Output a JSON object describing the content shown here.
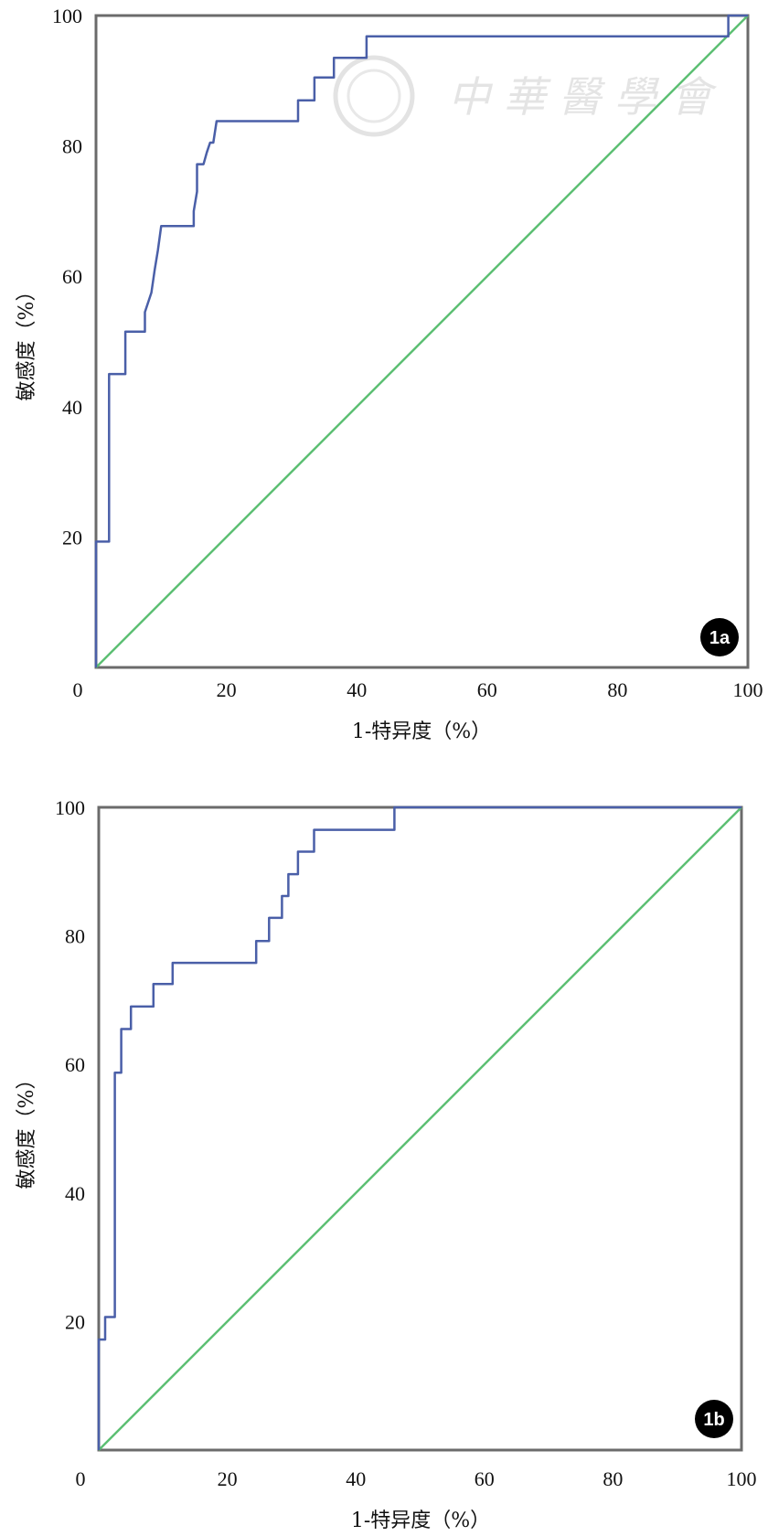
{
  "chart_data": [
    {
      "type": "line",
      "panel_label": "1a",
      "xlabel": "1-特异度（%）",
      "ylabel": "敏感度（%）",
      "xlim": [
        0,
        100
      ],
      "ylim": [
        0,
        100
      ],
      "x_ticks": [
        "0",
        "20",
        "40",
        "60",
        "80",
        "100"
      ],
      "y_ticks": [
        "20",
        "40",
        "60",
        "80",
        "100"
      ],
      "grid": false,
      "colors": {
        "roc": "#4a5fa8",
        "reference": "#5cbf73"
      },
      "series": [
        {
          "kind": "roc",
          "x": [
            0,
            0,
            2,
            2,
            4.5,
            4.5,
            7.5,
            7.5,
            8.5,
            9,
            9.5,
            10,
            15,
            15,
            15.5,
            15.5,
            16.5,
            17,
            17.5,
            18,
            18.5,
            18.5,
            31,
            31,
            33.5,
            33.5,
            36.5,
            36.5,
            41.5,
            41.5,
            97,
            97,
            100
          ],
          "y": [
            0,
            19.3,
            19.3,
            45,
            45,
            51.5,
            51.5,
            54.5,
            57.5,
            61,
            64,
            67.7,
            67.7,
            70,
            73,
            77.2,
            77.2,
            79,
            80.5,
            80.5,
            83.8,
            83.8,
            83.8,
            87,
            87,
            90.5,
            90.5,
            93.5,
            93.5,
            96.8,
            96.8,
            100,
            100
          ]
        },
        {
          "kind": "reference",
          "x": [
            0,
            100
          ],
          "y": [
            0,
            100
          ]
        }
      ]
    },
    {
      "type": "line",
      "panel_label": "1b",
      "xlabel": "1-特异度（%）",
      "ylabel": "敏感度（%）",
      "xlim": [
        0,
        100
      ],
      "ylim": [
        0,
        100
      ],
      "x_ticks": [
        "0",
        "20",
        "40",
        "60",
        "80",
        "100"
      ],
      "y_ticks": [
        "20",
        "40",
        "60",
        "80",
        "100"
      ],
      "grid": false,
      "colors": {
        "roc": "#4a5fa8",
        "reference": "#5cbf73"
      },
      "series": [
        {
          "kind": "roc",
          "x": [
            0,
            0,
            1,
            1,
            2.5,
            2.5,
            3.5,
            3.5,
            5,
            5,
            8.5,
            8.5,
            11.5,
            11.5,
            24.5,
            24.5,
            26.5,
            26.5,
            28.5,
            28.5,
            29.5,
            29.5,
            31,
            31,
            33.5,
            33.5,
            46,
            46,
            61,
            61,
            69,
            69,
            100
          ],
          "y": [
            0,
            17.2,
            17.2,
            20.7,
            20.7,
            58.7,
            58.7,
            65.5,
            65.5,
            69,
            69,
            72.5,
            72.5,
            75.8,
            75.8,
            79.2,
            79.2,
            82.8,
            82.8,
            86.2,
            86.2,
            89.6,
            89.6,
            93.1,
            93.1,
            96.5,
            96.5,
            100,
            100,
            100,
            100,
            100,
            100
          ]
        },
        {
          "kind": "reference",
          "x": [
            0,
            100
          ],
          "y": [
            0,
            100
          ]
        }
      ]
    }
  ]
}
